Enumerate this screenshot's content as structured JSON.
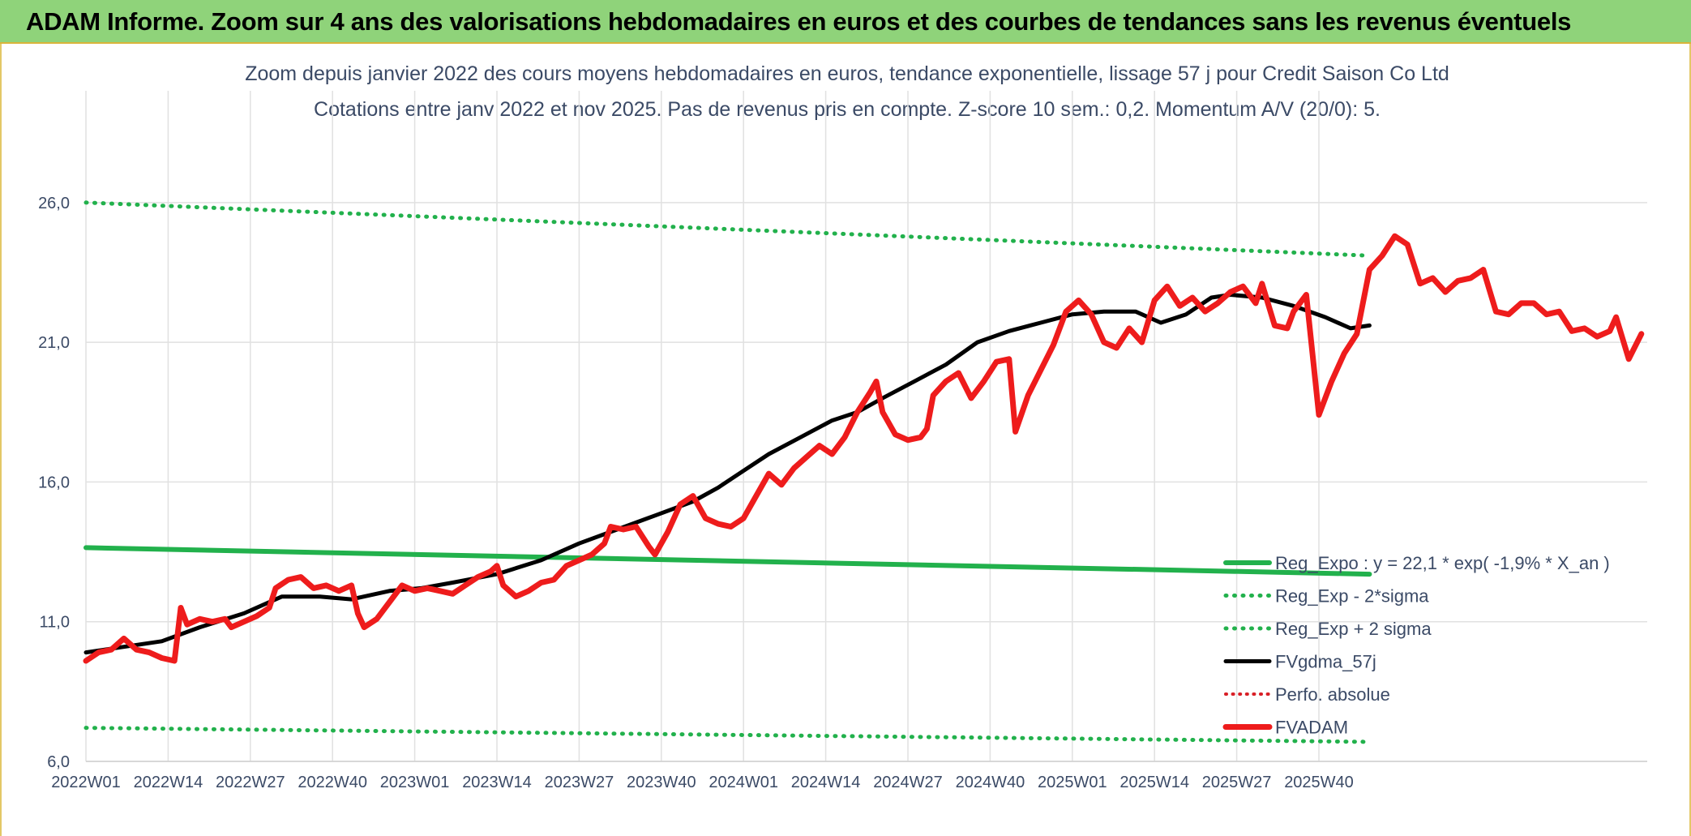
{
  "header": {
    "title": "ADAM Informe. Zoom sur 4 ans des valorisations hebdomadaires en euros et des courbes de tendances sans les revenus éventuels"
  },
  "chart_data": {
    "type": "line",
    "title": "Zoom depuis janvier 2022 des cours moyens hebdomadaires en euros, tendance exponentielle, lissage 57 j pour Credit Saison Co Ltd",
    "subtitle": "Cotations entre janv 2022 et nov 2025. Pas de revenus pris en compte. Z-score 10 sem.: 0,2. Momentum A/V (20/0): 5.",
    "xlabel": "",
    "ylabel": "",
    "ylim": [
      6,
      30
    ],
    "yticks": [
      {
        "value": 6,
        "label": "6,0"
      },
      {
        "value": 11,
        "label": "11,0"
      },
      {
        "value": 16,
        "label": "16,0"
      },
      {
        "value": 21,
        "label": "21,0"
      },
      {
        "value": 26,
        "label": "26,0"
      }
    ],
    "x_count": 200,
    "xticks": [
      {
        "index": 0,
        "label": "2022W01"
      },
      {
        "index": 13,
        "label": "2022W14"
      },
      {
        "index": 26,
        "label": "2022W27"
      },
      {
        "index": 39,
        "label": "2022W40"
      },
      {
        "index": 52,
        "label": "2023W01"
      },
      {
        "index": 65,
        "label": "2023W14"
      },
      {
        "index": 78,
        "label": "2023W27"
      },
      {
        "index": 91,
        "label": "2023W40"
      },
      {
        "index": 104,
        "label": "2024W01"
      },
      {
        "index": 117,
        "label": "2024W14"
      },
      {
        "index": 130,
        "label": "2024W27"
      },
      {
        "index": 143,
        "label": "2024W40"
      },
      {
        "index": 156,
        "label": "2025W01"
      },
      {
        "index": 169,
        "label": "2025W14"
      },
      {
        "index": 182,
        "label": "2025W27"
      },
      {
        "index": 195,
        "label": "2025W40"
      }
    ],
    "grid": true,
    "legend_position": "bottom-right",
    "series": [
      {
        "name": "Reg_Expo : y = 22,1 * exp( -1,9% *  X_an )",
        "style": "solid",
        "color": "#22b14c",
        "width": 6,
        "start": [
          0,
          13.65
        ],
        "end": [
          203,
          12.7
        ]
      },
      {
        "name": "Reg_Exp - 2*sigma",
        "style": "dotted",
        "color": "#22b14c",
        "width": 5,
        "start": [
          0,
          7.2
        ],
        "end": [
          203,
          6.7
        ]
      },
      {
        "name": "Reg_Exp + 2 sigma",
        "style": "dotted",
        "color": "#22b14c",
        "width": 5,
        "start": [
          0,
          26.0
        ],
        "end": [
          203,
          24.1
        ]
      },
      {
        "name": "FVgdma_57j",
        "style": "solid",
        "color": "#000000",
        "width": 5,
        "points": [
          [
            0,
            9.9
          ],
          [
            6,
            10.1
          ],
          [
            12,
            10.3
          ],
          [
            18,
            10.8
          ],
          [
            25,
            11.3
          ],
          [
            31,
            11.9
          ],
          [
            37,
            11.9
          ],
          [
            42,
            11.8
          ],
          [
            48,
            12.1
          ],
          [
            53,
            12.2
          ],
          [
            58,
            12.4
          ],
          [
            65,
            12.7
          ],
          [
            72,
            13.2
          ],
          [
            78,
            13.8
          ],
          [
            84,
            14.3
          ],
          [
            90,
            14.8
          ],
          [
            96,
            15.3
          ],
          [
            100,
            15.8
          ],
          [
            104,
            16.4
          ],
          [
            108,
            17.0
          ],
          [
            113,
            17.6
          ],
          [
            118,
            18.2
          ],
          [
            122,
            18.5
          ],
          [
            126,
            19.0
          ],
          [
            131,
            19.6
          ],
          [
            136,
            20.2
          ],
          [
            141,
            21.0
          ],
          [
            146,
            21.4
          ],
          [
            151,
            21.7
          ],
          [
            156,
            22.0
          ],
          [
            161,
            22.1
          ],
          [
            166,
            22.1
          ],
          [
            170,
            21.7
          ],
          [
            174,
            22.0
          ],
          [
            178,
            22.6
          ],
          [
            181,
            22.7
          ],
          [
            186,
            22.6
          ],
          [
            191,
            22.3
          ],
          [
            196,
            21.9
          ],
          [
            200,
            21.5
          ],
          [
            203,
            21.6
          ]
        ]
      },
      {
        "name": "Perfo. absolue",
        "style": "dotted",
        "color": "#d81f26",
        "width": 4
      },
      {
        "name": "FVADAM",
        "style": "solid",
        "color": "#ee1c1c",
        "width": 7,
        "points": [
          [
            0,
            9.6
          ],
          [
            2,
            9.9
          ],
          [
            4,
            10.0
          ],
          [
            6,
            10.4
          ],
          [
            8,
            10.0
          ],
          [
            10,
            9.9
          ],
          [
            12,
            9.7
          ],
          [
            14,
            9.6
          ],
          [
            15,
            11.5
          ],
          [
            16,
            10.9
          ],
          [
            18,
            11.1
          ],
          [
            20,
            11.0
          ],
          [
            22,
            11.1
          ],
          [
            23,
            10.8
          ],
          [
            25,
            11.0
          ],
          [
            27,
            11.2
          ],
          [
            29,
            11.5
          ],
          [
            30,
            12.2
          ],
          [
            32,
            12.5
          ],
          [
            34,
            12.6
          ],
          [
            36,
            12.2
          ],
          [
            38,
            12.3
          ],
          [
            40,
            12.1
          ],
          [
            42,
            12.3
          ],
          [
            43,
            11.3
          ],
          [
            44,
            10.8
          ],
          [
            46,
            11.1
          ],
          [
            48,
            11.7
          ],
          [
            50,
            12.3
          ],
          [
            52,
            12.1
          ],
          [
            54,
            12.2
          ],
          [
            56,
            12.1
          ],
          [
            58,
            12.0
          ],
          [
            60,
            12.3
          ],
          [
            62,
            12.6
          ],
          [
            64,
            12.8
          ],
          [
            65,
            13.0
          ],
          [
            66,
            12.3
          ],
          [
            68,
            11.9
          ],
          [
            70,
            12.1
          ],
          [
            72,
            12.4
          ],
          [
            74,
            12.5
          ],
          [
            76,
            13.0
          ],
          [
            78,
            13.2
          ],
          [
            80,
            13.4
          ],
          [
            82,
            13.8
          ],
          [
            83,
            14.4
          ],
          [
            85,
            14.3
          ],
          [
            87,
            14.4
          ],
          [
            89,
            13.7
          ],
          [
            90,
            13.4
          ],
          [
            92,
            14.2
          ],
          [
            94,
            15.2
          ],
          [
            96,
            15.5
          ],
          [
            98,
            14.7
          ],
          [
            100,
            14.5
          ],
          [
            102,
            14.4
          ],
          [
            104,
            14.7
          ],
          [
            106,
            15.5
          ],
          [
            108,
            16.3
          ],
          [
            110,
            15.9
          ],
          [
            112,
            16.5
          ],
          [
            114,
            16.9
          ],
          [
            116,
            17.3
          ],
          [
            118,
            17.0
          ],
          [
            120,
            17.6
          ],
          [
            122,
            18.5
          ],
          [
            124,
            19.2
          ],
          [
            125,
            19.6
          ],
          [
            126,
            18.5
          ],
          [
            128,
            17.7
          ],
          [
            130,
            17.5
          ],
          [
            132,
            17.6
          ],
          [
            133,
            17.9
          ],
          [
            134,
            19.1
          ],
          [
            136,
            19.6
          ],
          [
            138,
            19.9
          ],
          [
            140,
            19.0
          ],
          [
            142,
            19.6
          ],
          [
            144,
            20.3
          ],
          [
            146,
            20.4
          ],
          [
            147,
            17.8
          ],
          [
            149,
            19.1
          ],
          [
            151,
            20.0
          ],
          [
            153,
            20.9
          ],
          [
            155,
            22.1
          ],
          [
            157,
            22.5
          ],
          [
            159,
            22.0
          ],
          [
            161,
            21.0
          ],
          [
            163,
            20.8
          ],
          [
            165,
            21.5
          ],
          [
            167,
            21.0
          ],
          [
            169,
            22.5
          ],
          [
            171,
            23.0
          ],
          [
            173,
            22.3
          ],
          [
            175,
            22.6
          ],
          [
            177,
            22.1
          ],
          [
            179,
            22.4
          ],
          [
            181,
            22.8
          ],
          [
            183,
            23.0
          ],
          [
            185,
            22.4
          ],
          [
            186,
            23.1
          ],
          [
            188,
            21.6
          ],
          [
            190,
            21.5
          ],
          [
            191,
            22.1
          ],
          [
            193,
            22.7
          ],
          [
            195,
            18.4
          ],
          [
            197,
            19.6
          ],
          [
            199,
            20.6
          ],
          [
            201,
            21.3
          ],
          [
            203,
            23.6
          ],
          [
            205,
            24.1
          ],
          [
            207,
            24.8
          ],
          [
            209,
            24.5
          ],
          [
            211,
            23.1
          ],
          [
            213,
            23.3
          ],
          [
            215,
            22.8
          ],
          [
            217,
            23.2
          ],
          [
            219,
            23.3
          ],
          [
            221,
            23.6
          ],
          [
            223,
            22.1
          ],
          [
            225,
            22.0
          ],
          [
            227,
            22.4
          ],
          [
            229,
            22.4
          ],
          [
            231,
            22.0
          ],
          [
            233,
            22.1
          ],
          [
            235,
            21.4
          ],
          [
            237,
            21.5
          ],
          [
            239,
            21.2
          ],
          [
            241,
            21.4
          ],
          [
            242,
            21.9
          ],
          [
            244,
            20.4
          ],
          [
            246,
            21.3
          ]
        ]
      }
    ]
  }
}
